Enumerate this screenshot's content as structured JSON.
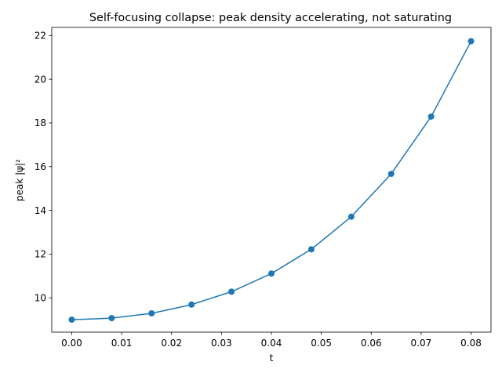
{
  "chart_data": {
    "type": "line",
    "title": "Self-focusing collapse: peak density accelerating, not saturating",
    "xlabel": "t",
    "ylabel": "peak |ψ|²",
    "xlim": [
      -0.004,
      0.084
    ],
    "ylim": [
      8.43,
      22.37
    ],
    "xticks": [
      0.0,
      0.01,
      0.02,
      0.03,
      0.04,
      0.05,
      0.06,
      0.07,
      0.08
    ],
    "xtick_labels": [
      "0.00",
      "0.01",
      "0.02",
      "0.03",
      "0.04",
      "0.05",
      "0.06",
      "0.07",
      "0.08"
    ],
    "yticks": [
      10,
      12,
      14,
      16,
      18,
      20,
      22
    ],
    "ytick_labels": [
      "10",
      "12",
      "14",
      "16",
      "18",
      "20",
      "22"
    ],
    "grid": false,
    "legend": false,
    "series": [
      {
        "color": "#1f77b4",
        "marker": "circle",
        "x": [
          0.0,
          0.008,
          0.016,
          0.024,
          0.032,
          0.04,
          0.048,
          0.056,
          0.064,
          0.072,
          0.08
        ],
        "y": [
          9.0,
          9.07,
          9.29,
          9.69,
          10.28,
          11.11,
          12.22,
          13.71,
          15.67,
          18.29,
          21.74
        ]
      }
    ]
  }
}
